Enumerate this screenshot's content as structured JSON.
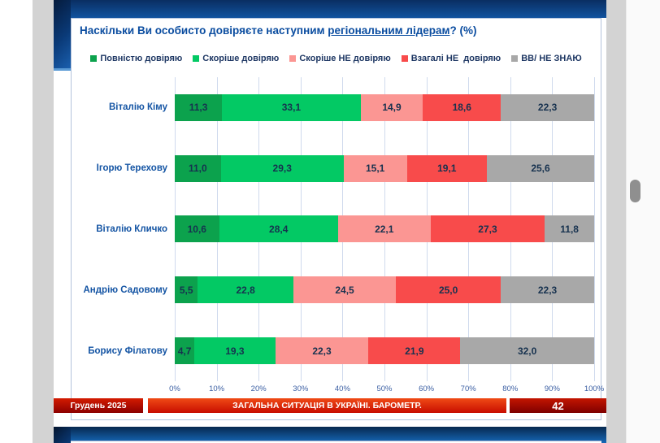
{
  "slide": {
    "title_prefix": "Наскільки Ви особисто довіряєте наступним ",
    "title_underlined": "регіональним лідерам",
    "title_suffix": "? (%)"
  },
  "chart_data": {
    "type": "bar",
    "subtype": "stacked-horizontal",
    "title": "Наскільки Ви особисто довіряєте наступним регіональним лідерам? (%)",
    "categories": [
      "Віталію Кіму",
      "Ігорю Терехову",
      "Віталію Кличко",
      "Андрію Садовому",
      "Борису Філатову"
    ],
    "series": [
      {
        "name": "Повністю довіряю",
        "color": "#0ca24d",
        "values": [
          11.3,
          11.0,
          10.6,
          5.5,
          4.7
        ]
      },
      {
        "name": "Скоріше довіряю",
        "color": "#03c964",
        "values": [
          33.1,
          29.3,
          28.4,
          22.8,
          19.3
        ]
      },
      {
        "name": "Скоріше НЕ довіряю",
        "color": "#fb9693",
        "values": [
          14.9,
          15.1,
          22.1,
          24.5,
          22.3
        ]
      },
      {
        "name": "Взагалі НЕ  довіряю",
        "color": "#f84b4b",
        "values": [
          18.6,
          19.1,
          27.3,
          25.0,
          21.9
        ]
      },
      {
        "name": "ВВ/ НЕ ЗНАЮ",
        "color": "#a8a8a8",
        "values": [
          22.3,
          25.6,
          11.8,
          22.3,
          32.0
        ]
      }
    ],
    "x_ticks": [
      "0%",
      "10%",
      "20%",
      "30%",
      "40%",
      "50%",
      "60%",
      "70%",
      "80%",
      "90%",
      "100%"
    ],
    "xlim": [
      0,
      100
    ],
    "grid": true,
    "legend_position": "top",
    "value_decimal_separator": ","
  },
  "footer": {
    "date": "Грудень 2025",
    "center": "ЗАГАЛЬНА СИТУАЦІЯ В УКРАЇНІ. БАРОМЕТР.",
    "page": "42"
  }
}
